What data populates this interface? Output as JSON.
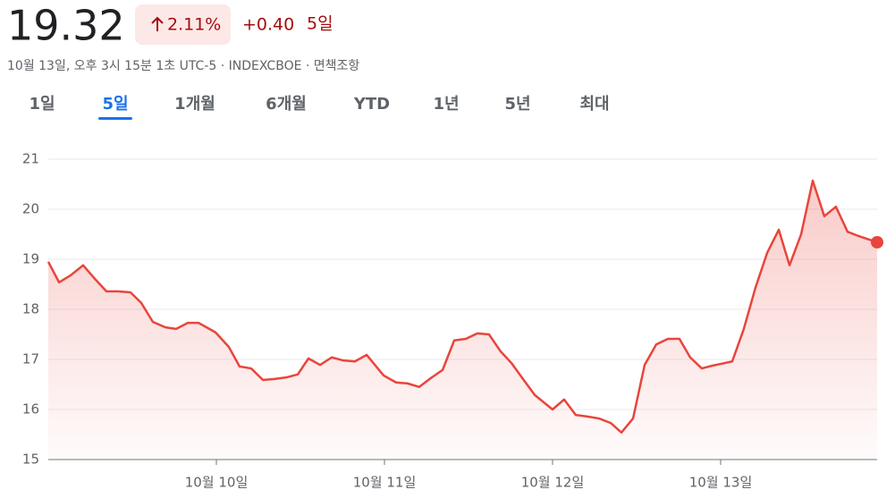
{
  "header": {
    "price": "19.32",
    "change_percent": "2.11%",
    "change": "+0.40",
    "period": "5일",
    "subtitle": "10월 13일, 오후 3시 15분 1초 UTC-5 · INDEXCBOE · 면책조항"
  },
  "tabs": {
    "items": [
      "1일",
      "5일",
      "1개월",
      "6개월",
      "YTD",
      "1년",
      "5년",
      "최대"
    ],
    "selected": 1
  },
  "chart_data": {
    "type": "line",
    "color": "#e8453c",
    "grid": true,
    "x": [
      0,
      0.064,
      0.133,
      0.207,
      0.277,
      0.346,
      0.415,
      0.489,
      0.553,
      0.622,
      0.697,
      0.761,
      0.83,
      0.894,
      0.995,
      1.074,
      1.138,
      1.207,
      1.277,
      1.346,
      1.415,
      1.484,
      1.548,
      1.617,
      1.686,
      1.755,
      1.824,
      1.894,
      1.995,
      2.069,
      2.138,
      2.207,
      2.277,
      2.346,
      2.415,
      2.484,
      2.553,
      2.622,
      2.691,
      2.755,
      2.824,
      2.894,
      3.0,
      3.069,
      3.138,
      3.207,
      3.277,
      3.346,
      3.41,
      3.479,
      3.548,
      3.617,
      3.686,
      3.755,
      3.819,
      3.888,
      3.957,
      4.0,
      4.069,
      4.138,
      4.207,
      4.277,
      4.346,
      4.41,
      4.479,
      4.548,
      4.617,
      4.686,
      4.755,
      4.824,
      4.931
    ],
    "values": [
      18.95,
      18.54,
      18.68,
      18.88,
      18.61,
      18.36,
      18.36,
      18.34,
      18.13,
      17.75,
      17.64,
      17.61,
      17.73,
      17.73,
      17.54,
      17.25,
      16.86,
      16.82,
      16.59,
      16.61,
      16.64,
      16.7,
      17.02,
      16.89,
      17.04,
      16.98,
      16.96,
      17.09,
      16.68,
      16.54,
      16.52,
      16.45,
      16.63,
      16.79,
      17.38,
      17.41,
      17.52,
      17.5,
      17.16,
      16.93,
      16.61,
      16.29,
      16.0,
      16.2,
      15.89,
      15.86,
      15.82,
      15.73,
      15.54,
      15.82,
      16.89,
      17.3,
      17.41,
      17.41,
      17.04,
      16.82,
      16.88,
      16.91,
      16.96,
      17.61,
      18.43,
      19.13,
      19.59,
      18.88,
      19.5,
      20.57,
      19.86,
      20.05,
      19.55,
      19.46,
      19.34
    ],
    "xlim": [
      0,
      4.931
    ],
    "ylim": [
      15,
      21
    ],
    "yticks": [
      15,
      16,
      17,
      18,
      19,
      20,
      21
    ],
    "xticks": [
      {
        "value": 1,
        "label": "10월 10일"
      },
      {
        "value": 2,
        "label": "10월 11일"
      },
      {
        "value": 3,
        "label": "10월 12일"
      },
      {
        "value": 4,
        "label": "10월 13일"
      }
    ]
  }
}
